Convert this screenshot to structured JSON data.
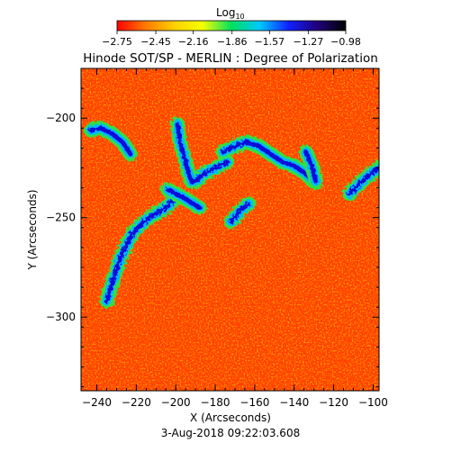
{
  "chart_data": {
    "type": "heatmap",
    "title": "Hinode SOT/SP - MERLIN : Degree of Polarization",
    "colorbar": {
      "title_base": "Log",
      "title_sub": "10",
      "tick_labels": [
        "-2.75",
        "-2.45",
        "-2.16",
        "-1.86",
        "-1.57",
        "-1.27",
        "-0.98"
      ],
      "range": [
        -2.75,
        -0.98
      ],
      "colors": [
        "#ff0000",
        "#ff7a00",
        "#ffd000",
        "#f4ff00",
        "#00e060",
        "#00c8ff",
        "#1020ff",
        "#20007a",
        "#000000"
      ]
    },
    "xlabel": "X (Arcseconds)",
    "ylabel": "Y (Arcseconds)",
    "xticks": [
      -240,
      -220,
      -200,
      -180,
      -160,
      -140,
      -120,
      -100
    ],
    "yticks": [
      -200,
      -250,
      -300
    ],
    "xlim": [
      -248,
      -97
    ],
    "ylim": [
      -337,
      -175
    ],
    "timestamp": "3-Aug-2018 09:22:03.608",
    "high_polarization_features": [
      {
        "x": [
          -243,
          -238,
          -232,
          -227,
          -223
        ],
        "y": [
          -206,
          -205,
          -208,
          -212,
          -218
        ]
      },
      {
        "x": [
          -199,
          -198,
          -196,
          -194,
          -192,
          -189,
          -186,
          -182,
          -178,
          -174
        ],
        "y": [
          -203,
          -212,
          -218,
          -226,
          -232,
          -231,
          -228,
          -226,
          -224,
          -222
        ]
      },
      {
        "x": [
          -176,
          -170,
          -164,
          -158,
          -152,
          -146,
          -140,
          -134,
          -130
        ],
        "y": [
          -217,
          -214,
          -212,
          -214,
          -218,
          -222,
          -224,
          -228,
          -232
        ]
      },
      {
        "x": [
          -134,
          -131,
          -129
        ],
        "y": [
          -217,
          -224,
          -232
        ]
      },
      {
        "x": [
          -235,
          -232,
          -228,
          -222,
          -216,
          -212,
          -208,
          -204,
          -200
        ],
        "y": [
          -292,
          -282,
          -270,
          -258,
          -252,
          -249,
          -247,
          -244,
          -240
        ]
      },
      {
        "x": [
          -204,
          -196,
          -188
        ],
        "y": [
          -236,
          -240,
          -245
        ]
      },
      {
        "x": [
          -172,
          -167,
          -163
        ],
        "y": [
          -252,
          -246,
          -243
        ]
      },
      {
        "x": [
          -112,
          -106,
          -100,
          -97
        ],
        "y": [
          -238,
          -232,
          -227,
          -225
        ]
      }
    ]
  }
}
